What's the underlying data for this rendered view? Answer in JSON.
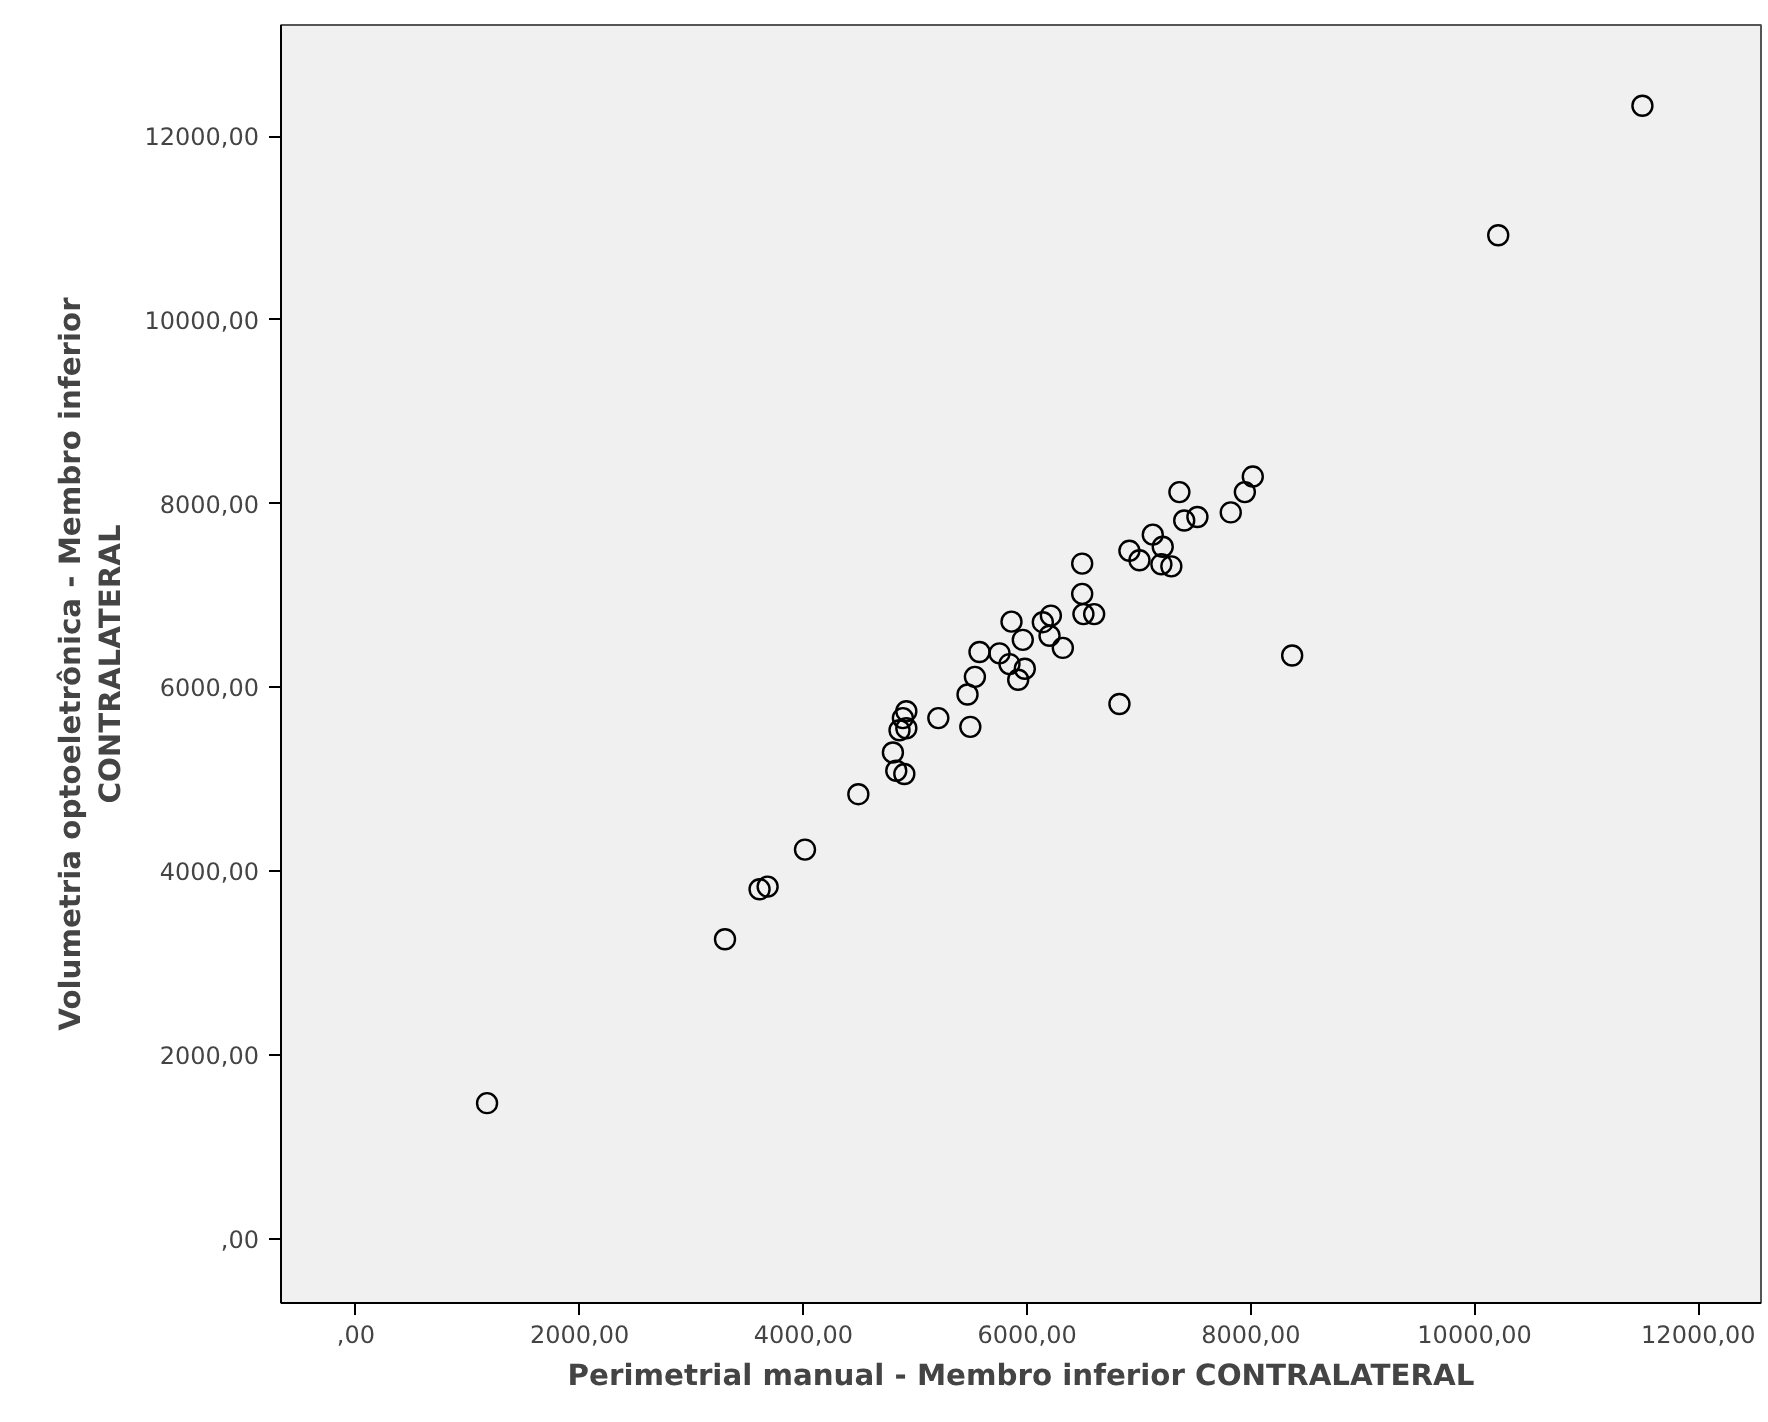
{
  "chart_data": {
    "type": "scatter",
    "xlabel": "Perimetrial manual - Membro inferior CONTRALATERAL",
    "ylabel": "Volumetria optoeletrônica - Membro inferior\nCONTRALATERAL",
    "x": [
      8017,
      7946,
      7361,
      7522,
      7404,
      7820,
      7123,
      7212,
      6914,
      7004,
      7200,
      7289,
      6492,
      6492,
      6503,
      6599,
      6212,
      6140,
      5860,
      5961,
      6200,
      6319,
      5574,
      5753,
      5842,
      5979,
      5920,
      5533,
      5467,
      6825,
      8369,
      4920,
      4889,
      5206,
      4920,
      4859,
      5492,
      4800,
      4830,
      4902,
      4491,
      4014,
      3608,
      3680,
      1172,
      3299,
      10211,
      11500
    ],
    "series": [
      {
        "color": "#000000",
        "values": [
          8295,
          8126,
          8126,
          7855,
          7817,
          7905,
          7663,
          7531,
          7487,
          7384,
          7340,
          7318,
          7348,
          7018,
          6798,
          6798,
          6782,
          6710,
          6716,
          6518,
          6562,
          6430,
          6386,
          6371,
          6254,
          6203,
          6084,
          6115,
          5923,
          5820,
          6348,
          5741,
          5666,
          5666,
          5556,
          5534,
          5571,
          5292,
          5093,
          5058,
          4838,
          4235,
          3803,
          3832,
          1475,
          3259,
          10922,
          12331
        ]
      }
    ],
    "marker": "circle",
    "grid": false,
    "xlim": [
      -670,
      12560
    ],
    "ylim": [
      -700,
      13210
    ],
    "xticks": [
      {
        "value": 0,
        "label": ",00"
      },
      {
        "value": 2000,
        "label": "2000,00"
      },
      {
        "value": 4000,
        "label": "4000,00"
      },
      {
        "value": 6000,
        "label": "6000,00"
      },
      {
        "value": 8000,
        "label": "8000,00"
      },
      {
        "value": 10000,
        "label": "10000,00"
      },
      {
        "value": 12000,
        "label": "12000,00"
      }
    ],
    "yticks": [
      {
        "value": 0,
        "label": ",00"
      },
      {
        "value": 2000,
        "label": "2000,00"
      },
      {
        "value": 4000,
        "label": "4000,00"
      },
      {
        "value": 6000,
        "label": "6000,00"
      },
      {
        "value": 8000,
        "label": "8000,00"
      },
      {
        "value": 10000,
        "label": "10000,00"
      },
      {
        "value": 12000,
        "label": "12000,00"
      }
    ]
  }
}
